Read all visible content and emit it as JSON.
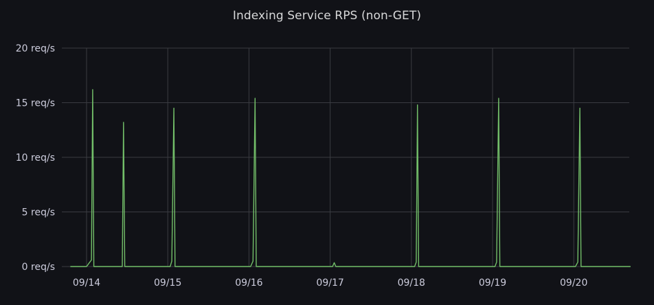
{
  "panel": {
    "title": "Indexing Service RPS (non-GET)"
  },
  "colors": {
    "background": "#111217",
    "grid": "#3b3c42",
    "series": "#73bf69",
    "text": "#ccccdc"
  },
  "chart_data": {
    "type": "line",
    "title": "Indexing Service RPS (non-GET)",
    "xlabel": "",
    "ylabel": "",
    "x_tick_labels": [
      "09/14",
      "09/15",
      "09/16",
      "09/17",
      "09/18",
      "09/19",
      "09/20"
    ],
    "y_tick_labels": [
      "0 req/s",
      "5 req/s",
      "10 req/s",
      "15 req/s",
      "20 req/s"
    ],
    "y_ticks": [
      0,
      5,
      10,
      15,
      20
    ],
    "ylim": [
      0,
      20
    ],
    "x_range_days": [
      -0.2,
      6.7
    ],
    "grid": true,
    "legend": "none",
    "series": [
      {
        "color": "#73bf69",
        "points": [
          {
            "x": -0.2,
            "y": 0
          },
          {
            "x": 0.0,
            "y": 0
          },
          {
            "x": 0.03,
            "y": 0.3
          },
          {
            "x": 0.06,
            "y": 0.6
          },
          {
            "x": 0.075,
            "y": 16.2
          },
          {
            "x": 0.09,
            "y": 0
          },
          {
            "x": 0.44,
            "y": 0
          },
          {
            "x": 0.455,
            "y": 13.2
          },
          {
            "x": 0.47,
            "y": 0
          },
          {
            "x": 1.03,
            "y": 0
          },
          {
            "x": 1.05,
            "y": 0.5
          },
          {
            "x": 1.075,
            "y": 14.5
          },
          {
            "x": 1.09,
            "y": 0
          },
          {
            "x": 2.02,
            "y": 0
          },
          {
            "x": 2.05,
            "y": 0.5
          },
          {
            "x": 2.075,
            "y": 15.4
          },
          {
            "x": 2.09,
            "y": 0
          },
          {
            "x": 3.03,
            "y": 0
          },
          {
            "x": 3.05,
            "y": 0.35
          },
          {
            "x": 3.07,
            "y": 0
          },
          {
            "x": 4.04,
            "y": 0
          },
          {
            "x": 4.06,
            "y": 0.4
          },
          {
            "x": 4.075,
            "y": 14.8
          },
          {
            "x": 4.09,
            "y": 0
          },
          {
            "x": 5.03,
            "y": 0
          },
          {
            "x": 5.05,
            "y": 0.4
          },
          {
            "x": 5.075,
            "y": 15.4
          },
          {
            "x": 5.09,
            "y": 0
          },
          {
            "x": 6.02,
            "y": 0
          },
          {
            "x": 6.05,
            "y": 0.4
          },
          {
            "x": 6.075,
            "y": 14.5
          },
          {
            "x": 6.09,
            "y": 0
          },
          {
            "x": 6.7,
            "y": 0
          }
        ]
      }
    ]
  }
}
